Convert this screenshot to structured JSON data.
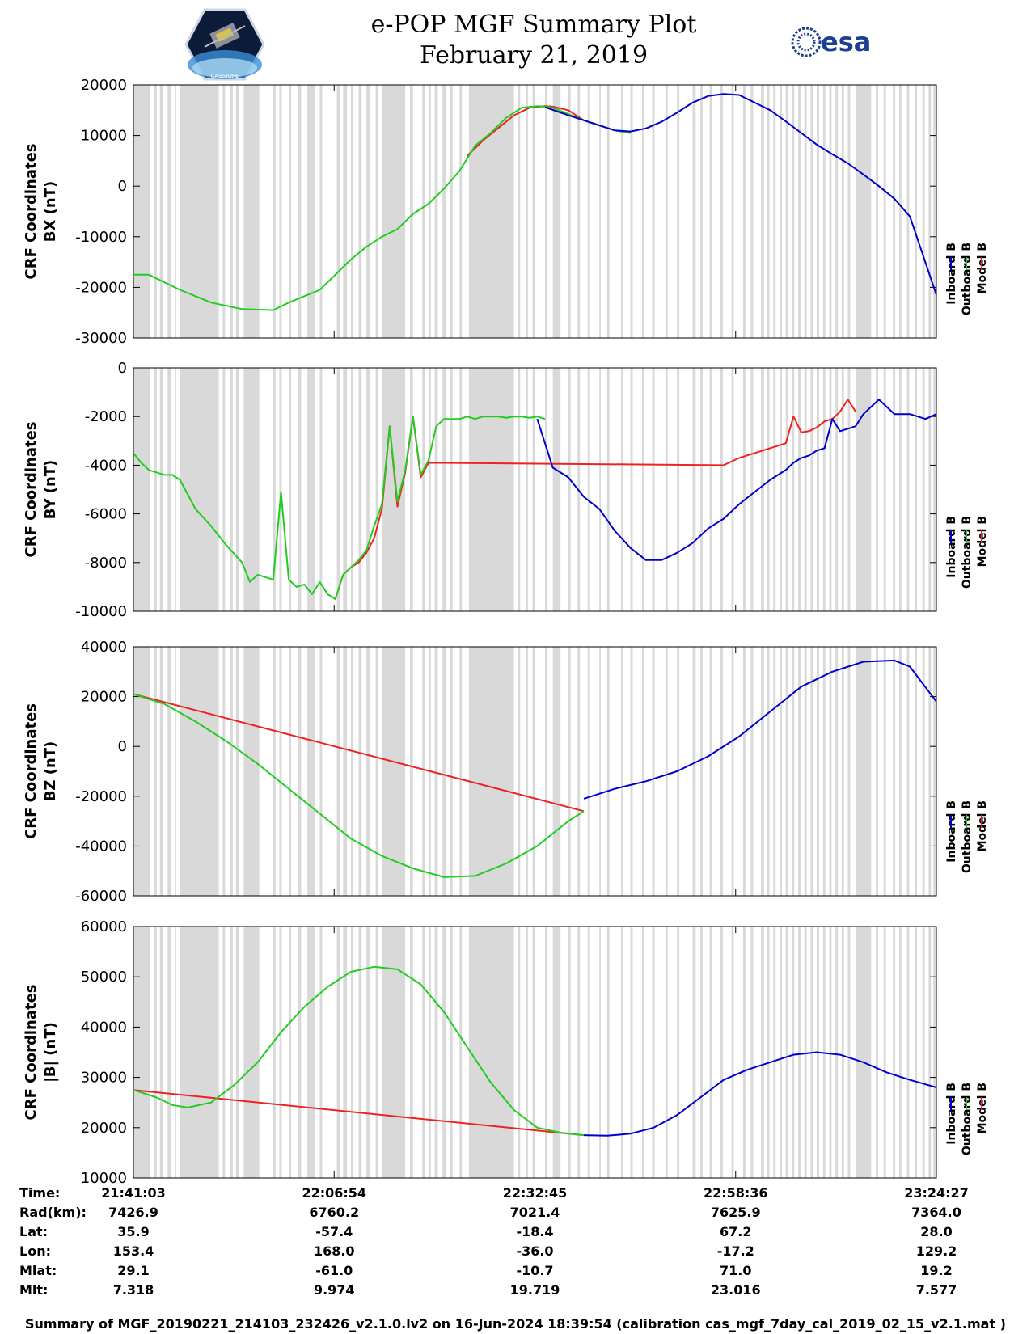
{
  "header": {
    "title_line1": "e-POP MGF Summary Plot",
    "title_line2": "February 21, 2019",
    "logo_left_text": "CASSIOPE",
    "logo_right_text": "esa"
  },
  "colors": {
    "inboard": "#0000cc",
    "outboard": "#22cc22",
    "model": "#ee2222",
    "shade": "#d9d9d9"
  },
  "chart_data": [
    {
      "type": "line",
      "ylabel_line1": "CRF Coordinates",
      "ylabel_line2": "BX (nT)",
      "ylim": [
        -30000,
        20000
      ],
      "yticks": [
        -30000,
        -20000,
        -10000,
        0,
        10000,
        20000
      ],
      "legend": [
        "Inboard B",
        "Outboard B",
        "Model B"
      ],
      "x_range_minutes": [
        0,
        103.4
      ],
      "series": [
        {
          "name": "Outboard B",
          "x": [
            0,
            2,
            6,
            10,
            14,
            18,
            20,
            24,
            26,
            28,
            30,
            32,
            34,
            36,
            38,
            39,
            40,
            42,
            44,
            46,
            47,
            48,
            50,
            52,
            53,
            54,
            58,
            60,
            62,
            64
          ],
          "y": [
            -17500,
            -17500,
            -20500,
            -23000,
            -24300,
            -24500,
            -23000,
            -20500,
            -17500,
            -14500,
            -12000,
            -10000,
            -8500,
            -5500,
            -3500,
            -2000,
            -500,
            3000,
            8000,
            10500,
            12000,
            13500,
            15500,
            15800,
            15700,
            15500,
            13000,
            12000,
            11000,
            10500
          ]
        },
        {
          "name": "Model B",
          "x": [
            43,
            45,
            47,
            49,
            51,
            53,
            54,
            56,
            58,
            60,
            62,
            64
          ],
          "y": [
            6000,
            9000,
            11500,
            14000,
            15500,
            15800,
            15700,
            15000,
            13000,
            12000,
            11000,
            10500
          ]
        },
        {
          "name": "Inboard B",
          "x": [
            53,
            56,
            60,
            62,
            64,
            66,
            68,
            70,
            72,
            74,
            76,
            78,
            80,
            82,
            84,
            86,
            88,
            90,
            92,
            94,
            96,
            98,
            100,
            103.4
          ],
          "y": [
            15600,
            14000,
            12000,
            11000,
            10800,
            11400,
            12700,
            14500,
            16500,
            17800,
            18200,
            18000,
            16500,
            15000,
            12800,
            10500,
            8200,
            6300,
            4500,
            2300,
            0,
            -2500,
            -6000,
            -21500
          ]
        }
      ]
    },
    {
      "type": "line",
      "ylabel_line1": "CRF Coordinates",
      "ylabel_line2": "BY (nT)",
      "ylim": [
        -10000,
        0
      ],
      "yticks": [
        -10000,
        -8000,
        -6000,
        -4000,
        -2000,
        0
      ],
      "legend": [
        "Inboard B",
        "Outboard B",
        "Model B"
      ],
      "x_range_minutes": [
        0,
        103.4
      ],
      "series": [
        {
          "name": "Outboard B",
          "x": [
            0,
            1,
            2,
            3,
            4,
            5,
            6,
            8,
            10,
            12,
            14,
            15,
            16,
            17,
            18,
            19,
            20,
            21,
            22,
            23,
            24,
            25,
            26,
            27,
            28,
            29,
            30,
            31,
            32,
            33,
            34,
            35,
            36,
            37,
            38,
            39,
            40,
            41,
            42,
            43,
            44,
            45,
            46,
            47,
            48,
            49,
            50,
            51,
            52,
            53
          ],
          "y": [
            -3500,
            -3900,
            -4200,
            -4300,
            -4400,
            -4400,
            -4600,
            -5800,
            -6500,
            -7300,
            -8000,
            -8800,
            -8500,
            -8600,
            -8700,
            -5100,
            -8700,
            -9000,
            -8900,
            -9300,
            -8800,
            -9300,
            -9500,
            -8500,
            -8200,
            -7900,
            -7500,
            -6500,
            -5600,
            -2400,
            -5500,
            -4200,
            -2000,
            -4400,
            -3800,
            -2400,
            -2100,
            -2100,
            -2100,
            -2000,
            -2100,
            -2000,
            -2000,
            -2000,
            -2050,
            -2000,
            -2000,
            -2050,
            -2000,
            -2100
          ]
        },
        {
          "name": "Model B",
          "x": [
            26,
            27,
            28,
            29,
            30,
            31,
            32,
            33,
            34,
            35,
            36,
            37,
            38,
            76,
            78,
            80,
            82,
            84,
            85,
            86,
            87,
            88,
            89,
            90,
            91,
            92,
            93
          ],
          "y": [
            -9500,
            -8500,
            -8200,
            -8000,
            -7600,
            -7000,
            -5800,
            -2400,
            -5700,
            -4300,
            -2000,
            -4500,
            -3900,
            -4000,
            -3700,
            -3500,
            -3300,
            -3100,
            -2000,
            -2650,
            -2600,
            -2450,
            -2200,
            -2100,
            -1800,
            -1300,
            -1800
          ]
        },
        {
          "name": "Inboard B",
          "x": [
            52,
            54,
            56,
            58,
            60,
            62,
            64,
            66,
            68,
            70,
            72,
            74,
            76,
            78,
            80,
            82,
            84,
            85,
            86,
            87,
            88,
            89,
            90,
            91,
            92,
            93,
            94,
            96,
            98,
            100,
            102,
            103.4
          ],
          "y": [
            -2100,
            -4100,
            -4500,
            -5300,
            -5800,
            -6700,
            -7400,
            -7900,
            -7900,
            -7600,
            -7200,
            -6600,
            -6200,
            -5600,
            -5100,
            -4600,
            -4200,
            -3900,
            -3700,
            -3600,
            -3400,
            -3300,
            -2100,
            -2600,
            -2500,
            -2400,
            -1900,
            -1300,
            -1900,
            -1900,
            -2100,
            -1900
          ]
        }
      ]
    },
    {
      "type": "line",
      "ylabel_line1": "CRF Coordinates",
      "ylabel_line2": "BZ (nT)",
      "ylim": [
        -60000,
        40000
      ],
      "yticks": [
        -60000,
        -40000,
        -20000,
        0,
        20000,
        40000
      ],
      "legend": [
        "Inboard B",
        "Outboard B",
        "Model B"
      ],
      "x_range_minutes": [
        0,
        103.4
      ],
      "series": [
        {
          "name": "Outboard B",
          "x": [
            0,
            4,
            8,
            12,
            16,
            20,
            24,
            28,
            32,
            36,
            40,
            44,
            48,
            52,
            56,
            58
          ],
          "y": [
            21000,
            17000,
            10000,
            2000,
            -7000,
            -17000,
            -27000,
            -37000,
            -44000,
            -49000,
            -52500,
            -52000,
            -47000,
            -40000,
            -30000,
            -26000
          ]
        },
        {
          "name": "Model B",
          "x": [
            0,
            58
          ],
          "y": [
            21000,
            -26000
          ]
        },
        {
          "name": "Inboard B",
          "x": [
            58,
            62,
            66,
            70,
            74,
            78,
            82,
            86,
            90,
            94,
            98,
            100,
            103.4
          ],
          "y": [
            -21000,
            -17000,
            -14000,
            -10000,
            -4000,
            4000,
            14000,
            24000,
            30000,
            34000,
            34500,
            32000,
            18000
          ]
        }
      ]
    },
    {
      "type": "line",
      "ylabel_line1": "CRF Coordinates",
      "ylabel_line2": "|B| (nT)",
      "ylim": [
        10000,
        60000
      ],
      "yticks": [
        10000,
        20000,
        30000,
        40000,
        50000,
        60000
      ],
      "legend": [
        "Inboard B",
        "Outboard B",
        "Model B"
      ],
      "x_range_minutes": [
        0,
        103.4
      ],
      "series": [
        {
          "name": "Outboard B",
          "x": [
            0,
            3,
            5,
            7,
            10,
            13,
            16,
            19,
            22,
            25,
            28,
            31,
            34,
            37,
            40,
            43,
            46,
            49,
            52,
            55,
            58
          ],
          "y": [
            27500,
            26000,
            24500,
            24000,
            25000,
            28500,
            33000,
            39000,
            44000,
            48000,
            51000,
            52000,
            51500,
            48500,
            43000,
            36000,
            29000,
            23500,
            20000,
            19000,
            18500
          ]
        },
        {
          "name": "Model B",
          "x": [
            0,
            58
          ],
          "y": [
            27500,
            18500
          ]
        },
        {
          "name": "Inboard B",
          "x": [
            58,
            61,
            64,
            67,
            70,
            73,
            76,
            79,
            82,
            85,
            88,
            91,
            94,
            97,
            100,
            103.4
          ],
          "y": [
            18500,
            18400,
            18800,
            20000,
            22500,
            26000,
            29500,
            31500,
            33000,
            34500,
            35000,
            34500,
            33000,
            31000,
            29500,
            28000
          ]
        }
      ]
    }
  ],
  "info_table": {
    "labels": [
      "Time:",
      "Rad(km):",
      "Lat:",
      "Lon:",
      "Mlat:",
      "Mlt:"
    ],
    "columns": [
      [
        "21:41:03",
        "7426.9",
        "35.9",
        "153.4",
        "29.1",
        "7.318"
      ],
      [
        "22:06:54",
        "6760.2",
        "-57.4",
        "168.0",
        "-61.0",
        "9.974"
      ],
      [
        "22:32:45",
        "7021.4",
        "-18.4",
        "-36.0",
        "-10.7",
        "19.719"
      ],
      [
        "22:58:36",
        "7625.9",
        "67.2",
        "-17.2",
        "71.0",
        "23.016"
      ],
      [
        "23:24:27",
        "7364.0",
        "28.0",
        "129.2",
        "19.2",
        "7.577"
      ]
    ]
  },
  "footer": "Summary of MGF_20190221_214103_232426_v2.1.0.lv2 on 16-Jun-2024 18:39:54 (calibration cas_mgf_7day_cal_2019_02_15_v2.1.mat )"
}
